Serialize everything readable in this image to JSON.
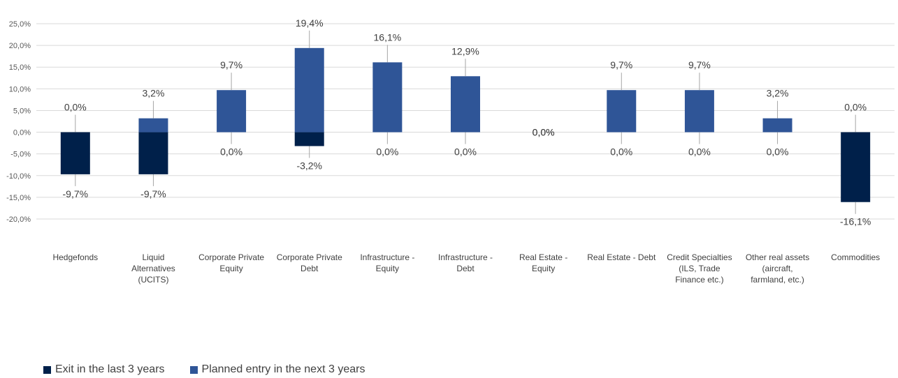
{
  "chart_data": {
    "type": "bar",
    "stacked": true,
    "grid": "horizontal",
    "legend_position": "bottom-left",
    "ylim": [
      -20,
      25
    ],
    "yticks": [
      "25,0%",
      "20,0%",
      "15,0%",
      "10,0%",
      "5,0%",
      "0,0%",
      "-5,0%",
      "-10,0%",
      "-15,0%",
      "-20,0%"
    ],
    "categories": [
      "Hedgefonds",
      "Liquid Alternatives (UCITS)",
      "Corporate Private Equity",
      "Corporate Private Debt",
      "Infrastructure - Equity",
      "Infrastructure - Debt",
      "Real Estate - Equity",
      "Real Estate - Debt",
      "Credit Specialties (ILS, Trade Finance etc.)",
      "Other real assets (aircraft, farmland, etc.)",
      "Commodities"
    ],
    "category_lines": [
      [
        "Hedgefonds"
      ],
      [
        "Liquid",
        "Alternatives",
        "(UCITS)"
      ],
      [
        "Corporate Private",
        "Equity"
      ],
      [
        "Corporate Private",
        "Debt"
      ],
      [
        "Infrastructure -",
        "Equity"
      ],
      [
        "Infrastructure -",
        "Debt"
      ],
      [
        "Real Estate -",
        "Equity"
      ],
      [
        "Real Estate - Debt"
      ],
      [
        "Credit Specialties",
        "(ILS, Trade",
        "Finance etc.)"
      ],
      [
        "Other real assets",
        "(aircraft,",
        "farmland, etc.)"
      ],
      [
        "Commodities"
      ]
    ],
    "series": [
      {
        "name": "Exit in the last 3 years",
        "color": "#00204a",
        "values": [
          -9.7,
          -9.7,
          0.0,
          -3.2,
          0.0,
          0.0,
          0.0,
          0.0,
          0.0,
          0.0,
          -16.1
        ],
        "labels": [
          "-9,7%",
          "-9,7%",
          "0,0%",
          "-3,2%",
          "0,0%",
          "0,0%",
          "0,0%",
          "0,0%",
          "0,0%",
          "0,0%",
          "-16,1%"
        ]
      },
      {
        "name": "Planned entry in the next 3 years",
        "color": "#2f5597",
        "values": [
          0.0,
          3.2,
          9.7,
          19.4,
          16.1,
          12.9,
          0.0,
          9.7,
          9.7,
          3.2,
          0.0
        ],
        "labels": [
          "0,0%",
          "3,2%",
          "9,7%",
          "19,4%",
          "16,1%",
          "12,9%",
          "0,0%",
          "9,7%",
          "9,7%",
          "3,2%",
          "0,0%"
        ]
      }
    ]
  }
}
